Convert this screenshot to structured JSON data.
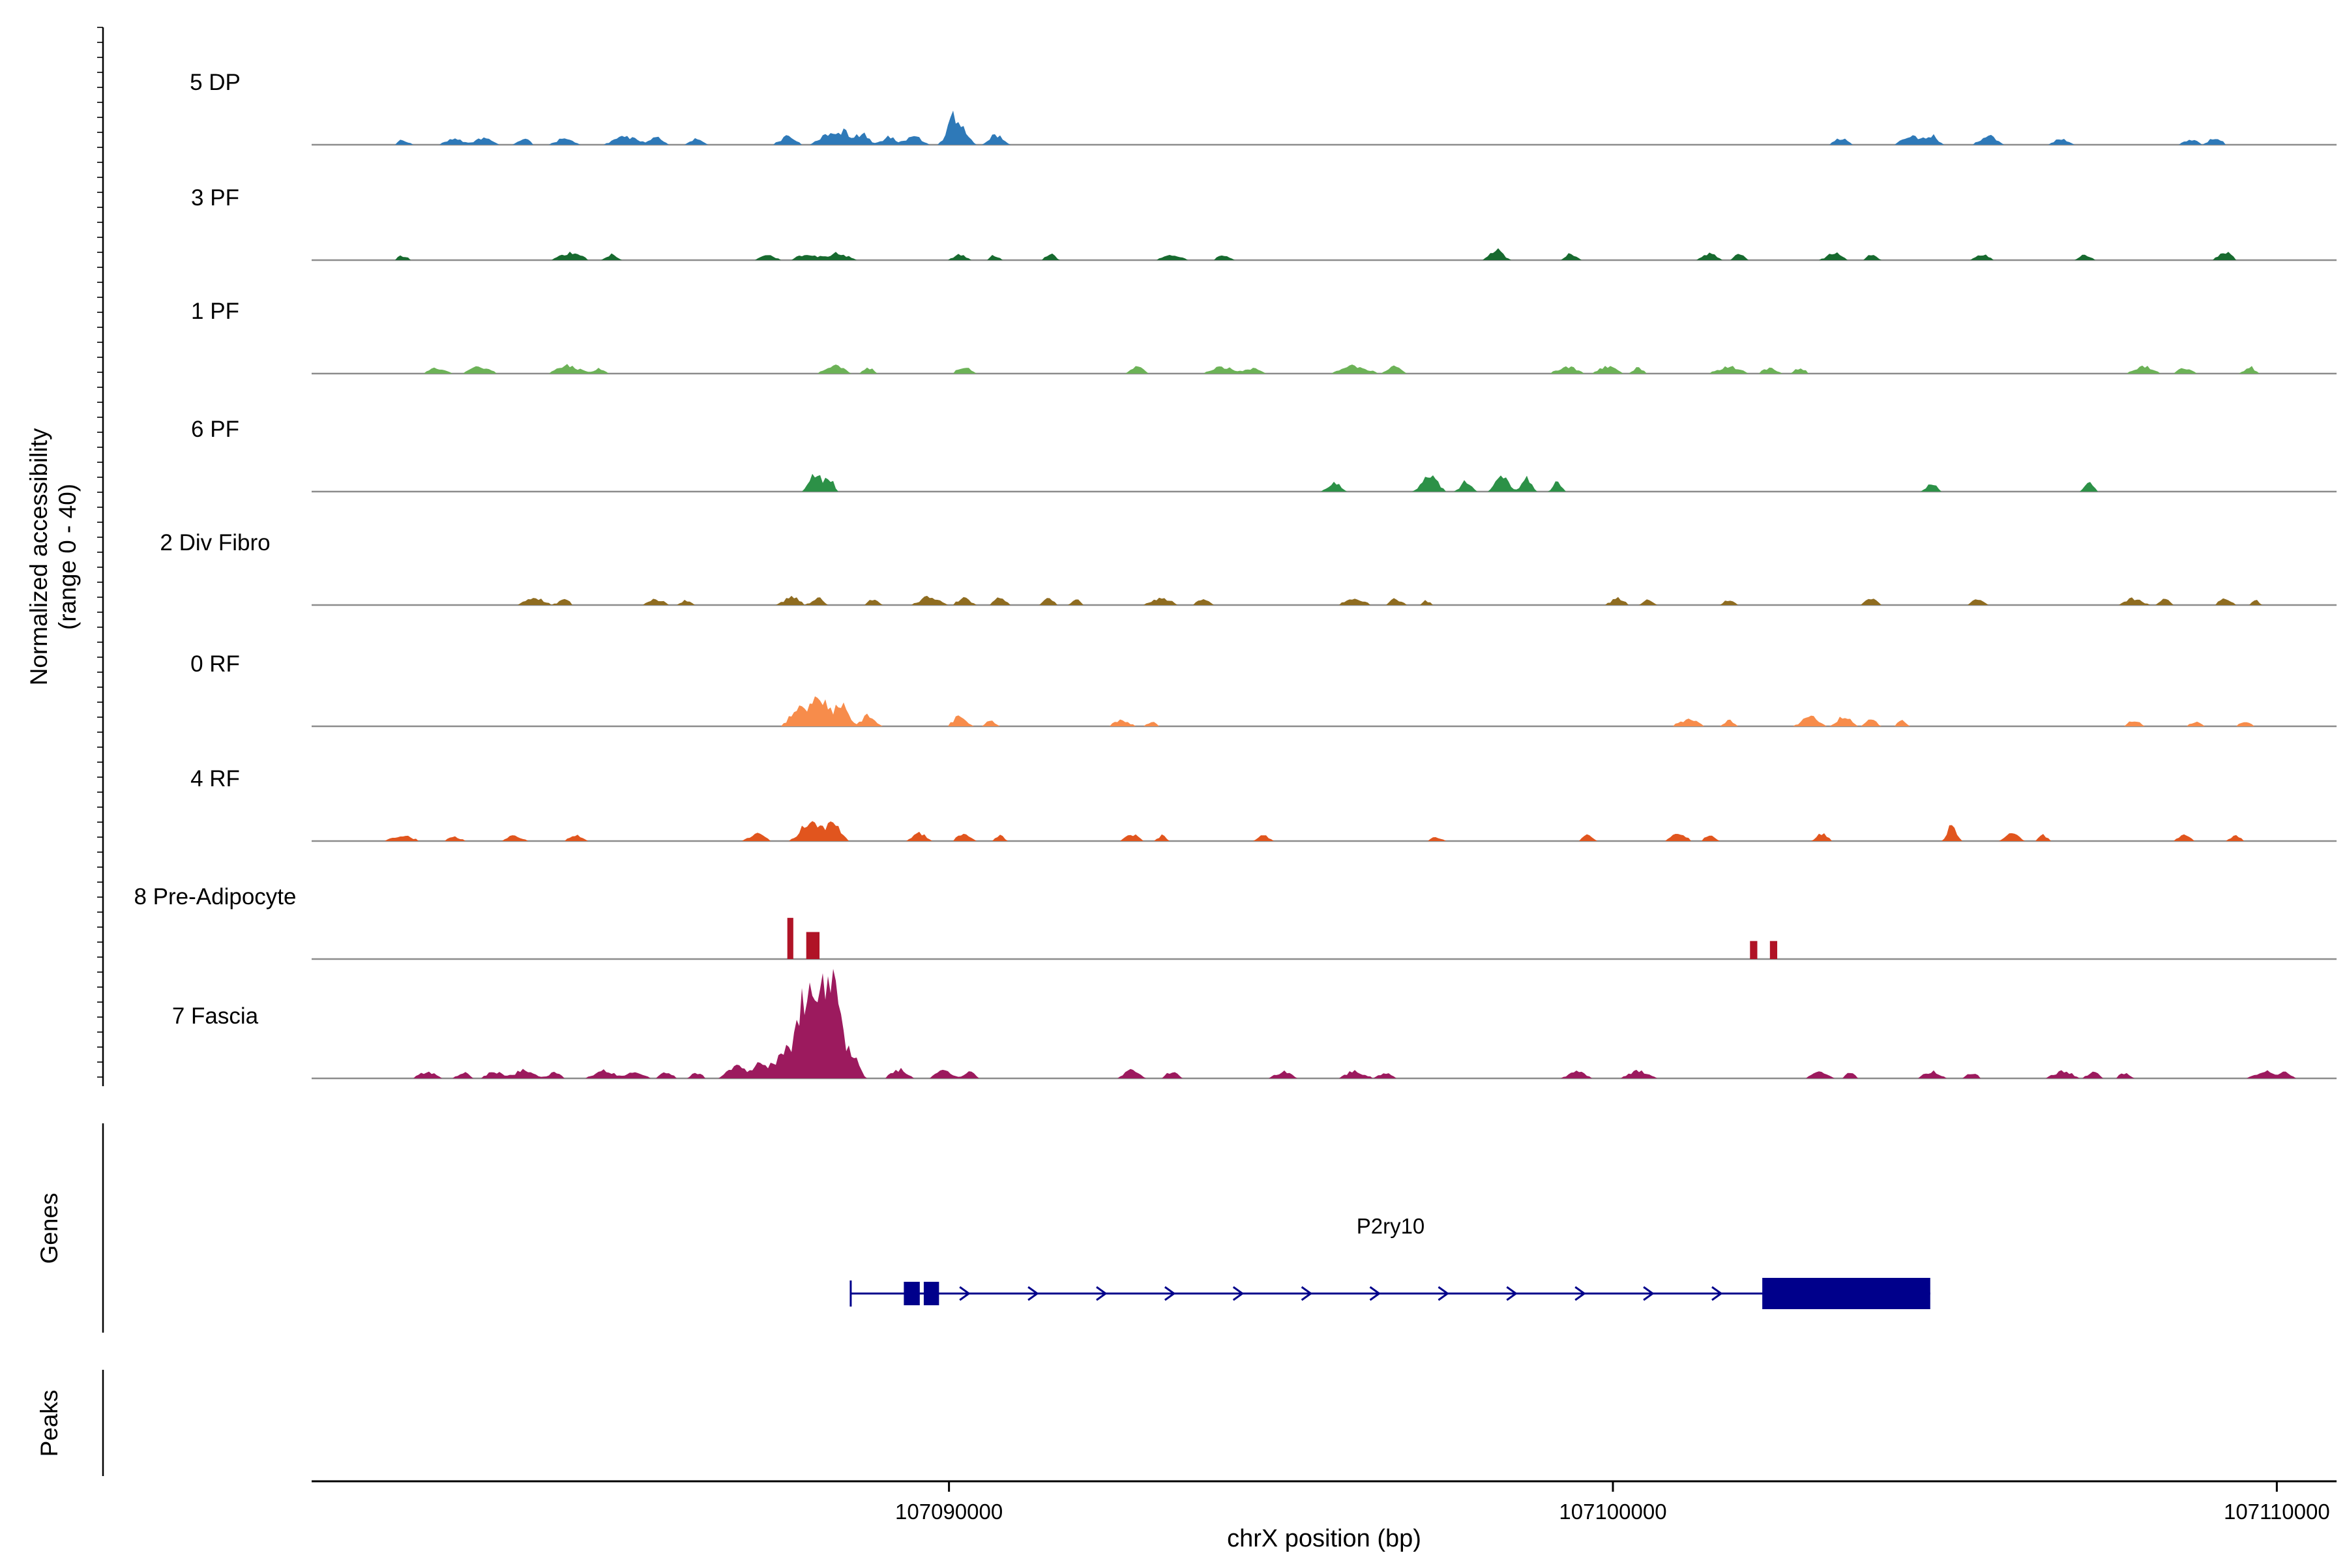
{
  "chart_data": {
    "type": "area",
    "title": "",
    "ylabel_lines": [
      "Normalized accessibility",
      "(range 0 - 40)"
    ],
    "y_range_per_track": [
      0,
      40
    ],
    "xlim": [
      107080400,
      107110900
    ],
    "xaxis": {
      "label": "chrX position (bp)",
      "chromosome": "chrX",
      "ticks": [
        107090000,
        107100000,
        107110000
      ]
    },
    "sections": {
      "genes_label": "Genes",
      "peaks_label": "Peaks"
    },
    "tracks": [
      {
        "label": "5 DP",
        "color": "#2e79b8",
        "style": "spiky",
        "bumps": [
          [
            107081770,
            2,
            180
          ],
          [
            107082540,
            2.5,
            300
          ],
          [
            107082990,
            3,
            240
          ],
          [
            107083600,
            2.5,
            200
          ],
          [
            107084210,
            3,
            240
          ],
          [
            107085130,
            3.5,
            360
          ],
          [
            107085590,
            3,
            200
          ],
          [
            107086200,
            2.5,
            200
          ],
          [
            107087570,
            3.5,
            240
          ],
          [
            107088180,
            4,
            300
          ],
          [
            107088420,
            5,
            240
          ],
          [
            107088700,
            4.5,
            200
          ],
          [
            107089090,
            3.5,
            200
          ],
          [
            107089460,
            4,
            240
          ],
          [
            107090070,
            12,
            200
          ],
          [
            107090230,
            5.5,
            160
          ],
          [
            107090710,
            4.5,
            200
          ],
          [
            107103430,
            3,
            200
          ],
          [
            107104500,
            3.5,
            300
          ],
          [
            107104800,
            4,
            200
          ],
          [
            107105650,
            4,
            240
          ],
          [
            107106750,
            3,
            200
          ],
          [
            107108700,
            2.5,
            200
          ],
          [
            107109070,
            3,
            200
          ]
        ]
      },
      {
        "label": "3 PF",
        "color": "#176a2f",
        "style": "spiky",
        "bumps": [
          [
            107081770,
            2,
            160
          ],
          [
            107084300,
            3,
            340
          ],
          [
            107084910,
            2.5,
            160
          ],
          [
            107087260,
            2,
            240
          ],
          [
            107087870,
            2.5,
            340
          ],
          [
            107088330,
            3,
            300
          ],
          [
            107090160,
            2.5,
            200
          ],
          [
            107090680,
            2,
            160
          ],
          [
            107091530,
            2.5,
            160
          ],
          [
            107093360,
            2,
            300
          ],
          [
            107094130,
            2,
            200
          ],
          [
            107098240,
            5,
            200
          ],
          [
            107099370,
            3,
            160
          ],
          [
            107101450,
            3,
            240
          ],
          [
            107101900,
            2.5,
            160
          ],
          [
            107103340,
            3,
            240
          ],
          [
            107103890,
            2.5,
            160
          ],
          [
            107105560,
            2.5,
            200
          ],
          [
            107107120,
            2.5,
            160
          ],
          [
            107109220,
            3.5,
            200
          ]
        ]
      },
      {
        "label": "1 PF",
        "color": "#6cb257",
        "style": "spiky",
        "bumps": [
          [
            107082290,
            2.5,
            240
          ],
          [
            107082930,
            3,
            300
          ],
          [
            107084270,
            3.5,
            340
          ],
          [
            107084730,
            2.5,
            160
          ],
          [
            107088270,
            3.5,
            300
          ],
          [
            107088790,
            2.5,
            160
          ],
          [
            107090220,
            3,
            200
          ],
          [
            107092840,
            3,
            200
          ],
          [
            107094130,
            3,
            340
          ],
          [
            107094580,
            2.5,
            200
          ],
          [
            107096110,
            3.5,
            400
          ],
          [
            107096720,
            3,
            200
          ],
          [
            107099310,
            3,
            300
          ],
          [
            107099920,
            3.5,
            240
          ],
          [
            107100380,
            2.5,
            160
          ],
          [
            107101750,
            3,
            340
          ],
          [
            107102360,
            2.5,
            200
          ],
          [
            107102820,
            2.5,
            160
          ],
          [
            107108000,
            3,
            300
          ],
          [
            107108610,
            2.5,
            200
          ],
          [
            107109590,
            3,
            160
          ]
        ]
      },
      {
        "label": "6 PF",
        "color": "#2c9147",
        "style": "spiky",
        "bumps": [
          [
            107088000,
            8,
            200
          ],
          [
            107088210,
            5,
            130
          ],
          [
            107095800,
            4,
            200
          ],
          [
            107097240,
            7.5,
            240
          ],
          [
            107097790,
            5,
            160
          ],
          [
            107098330,
            7.5,
            200
          ],
          [
            107098700,
            6,
            160
          ],
          [
            107099160,
            4,
            130
          ],
          [
            107104800,
            3.5,
            160
          ],
          [
            107107180,
            5,
            130
          ]
        ]
      },
      {
        "label": "2 Div Fibro",
        "color": "#8f6c20",
        "style": "spiky",
        "bumps": [
          [
            107083760,
            3,
            300
          ],
          [
            107084210,
            2.5,
            160
          ],
          [
            107085590,
            2.5,
            240
          ],
          [
            107086040,
            2,
            160
          ],
          [
            107087630,
            3.5,
            240
          ],
          [
            107088030,
            3,
            160
          ],
          [
            107088850,
            2.5,
            160
          ],
          [
            107089700,
            3.5,
            300
          ],
          [
            107090220,
            3,
            200
          ],
          [
            107090770,
            3,
            200
          ],
          [
            107091500,
            3,
            160
          ],
          [
            107091930,
            2.5,
            130
          ],
          [
            107093210,
            3,
            300
          ],
          [
            107093820,
            2.5,
            200
          ],
          [
            107096110,
            3,
            300
          ],
          [
            107096720,
            2.5,
            200
          ],
          [
            107097180,
            2,
            130
          ],
          [
            107100070,
            3,
            200
          ],
          [
            107100530,
            2.5,
            130
          ],
          [
            107101750,
            2.5,
            160
          ],
          [
            107103890,
            2.5,
            200
          ],
          [
            107105500,
            3,
            160
          ],
          [
            107107850,
            3,
            240
          ],
          [
            107108310,
            2.5,
            160
          ],
          [
            107109220,
            2.5,
            200
          ],
          [
            107109680,
            2,
            130
          ]
        ]
      },
      {
        "label": "0 RF",
        "color": "#f78c4b",
        "style": "spiky",
        "bumps": [
          [
            107087720,
            7.5,
            240
          ],
          [
            107088060,
            12.5,
            300
          ],
          [
            107088390,
            8.5,
            200
          ],
          [
            107088790,
            5,
            200
          ],
          [
            107090160,
            4.5,
            200
          ],
          [
            107090620,
            3,
            130
          ],
          [
            107092600,
            2.5,
            240
          ],
          [
            107093060,
            2,
            160
          ],
          [
            107101140,
            3,
            300
          ],
          [
            107101750,
            2.5,
            160
          ],
          [
            107102970,
            4.5,
            240
          ],
          [
            107103490,
            5,
            200
          ],
          [
            107103890,
            3,
            160
          ],
          [
            107104340,
            2.5,
            130
          ],
          [
            107107850,
            2.5,
            200
          ],
          [
            107108770,
            2,
            160
          ],
          [
            107109530,
            2.5,
            160
          ]
        ]
      },
      {
        "label": "4 RF",
        "color": "#e1551e",
        "style": "spiky",
        "bumps": [
          [
            107081770,
            2.5,
            300
          ],
          [
            107082540,
            2,
            200
          ],
          [
            107083450,
            2.5,
            240
          ],
          [
            107084370,
            2.5,
            200
          ],
          [
            107087110,
            3,
            240
          ],
          [
            107087930,
            10,
            300
          ],
          [
            107088270,
            8.5,
            200
          ],
          [
            107089550,
            3.5,
            200
          ],
          [
            107090220,
            3,
            200
          ],
          [
            107090770,
            2.5,
            130
          ],
          [
            107092750,
            3,
            200
          ],
          [
            107093210,
            2.5,
            130
          ],
          [
            107094740,
            2.5,
            160
          ],
          [
            107097330,
            2,
            160
          ],
          [
            107099620,
            2.5,
            160
          ],
          [
            107100990,
            3,
            240
          ],
          [
            107101450,
            2.5,
            160
          ],
          [
            107103150,
            3.5,
            160
          ],
          [
            107105110,
            8,
            130
          ],
          [
            107106020,
            3.5,
            200
          ],
          [
            107106480,
            2.5,
            130
          ],
          [
            107108610,
            2.5,
            200
          ],
          [
            107109380,
            2.5,
            160
          ]
        ]
      },
      {
        "label": "8 Pre-Adipocyte",
        "color": "#b01326",
        "style": "bars",
        "bumps": [
          [
            107087610,
            16,
            90
          ],
          [
            107087950,
            10.5,
            200
          ],
          [
            107102120,
            7,
            110
          ],
          [
            107102420,
            7,
            110
          ]
        ]
      },
      {
        "label": "7 Fascia",
        "color": "#9c1a5e",
        "style": "spiky",
        "bumps": [
          [
            107088060,
            38,
            430
          ],
          [
            107087810,
            20,
            240
          ],
          [
            107088300,
            18,
            240
          ],
          [
            107087510,
            10,
            300
          ],
          [
            107088570,
            7.5,
            180
          ],
          [
            107087170,
            6,
            240
          ],
          [
            107086810,
            5,
            300
          ],
          [
            107082140,
            3,
            240
          ],
          [
            107082690,
            2.5,
            180
          ],
          [
            107083150,
            3,
            240
          ],
          [
            107083600,
            3.5,
            300
          ],
          [
            107084060,
            2.5,
            180
          ],
          [
            107084820,
            3.5,
            300
          ],
          [
            107085280,
            3,
            240
          ],
          [
            107085740,
            3,
            180
          ],
          [
            107086200,
            2.5,
            180
          ],
          [
            107089250,
            4,
            240
          ],
          [
            107089920,
            3.5,
            240
          ],
          [
            107090310,
            3,
            180
          ],
          [
            107092750,
            3.5,
            240
          ],
          [
            107093360,
            3,
            180
          ],
          [
            107095040,
            3,
            240
          ],
          [
            107096110,
            3,
            300
          ],
          [
            107096570,
            2.5,
            180
          ],
          [
            107099460,
            3,
            240
          ],
          [
            107100380,
            3.5,
            300
          ],
          [
            107103120,
            3,
            240
          ],
          [
            107103580,
            2.5,
            150
          ],
          [
            107104800,
            3,
            240
          ],
          [
            107105410,
            2.5,
            180
          ],
          [
            107106780,
            3,
            300
          ],
          [
            107107240,
            2.5,
            180
          ],
          [
            107107700,
            2.5,
            150
          ],
          [
            107109830,
            3,
            300
          ],
          [
            107110140,
            2.5,
            180
          ]
        ]
      }
    ],
    "gene": {
      "name": "P2ry10",
      "strand": "+",
      "start": 107088520,
      "end": 107104780,
      "exons": [
        [
          107089320,
          107089560
        ],
        [
          107089620,
          107089850
        ],
        [
          107102250,
          107104780
        ]
      ],
      "color": "#00008b"
    },
    "peaks": []
  }
}
